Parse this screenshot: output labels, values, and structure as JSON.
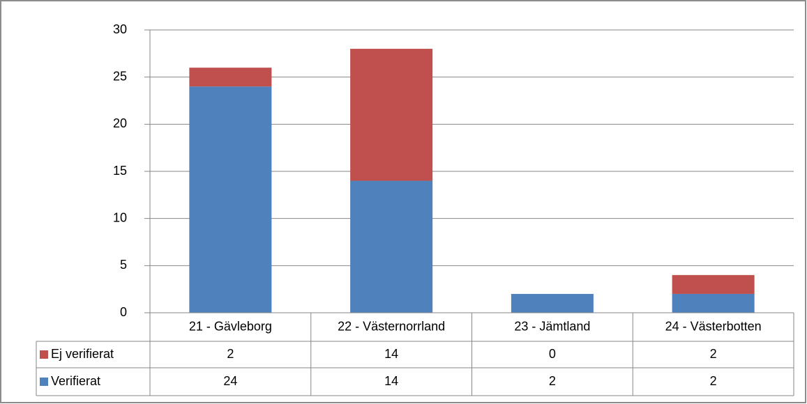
{
  "chart_data": {
    "type": "stacked_bar",
    "categories": [
      "21 - Gävleborg",
      "22 - Västernorrland",
      "23 - Jämtland",
      "24 - Västerbotten"
    ],
    "series": [
      {
        "name": "Verifierat",
        "color": "#4f81bd",
        "values": [
          24,
          14,
          2,
          2
        ]
      },
      {
        "name": "Ej verifierat",
        "color": "#c0504d",
        "values": [
          2,
          14,
          0,
          2
        ]
      }
    ],
    "ylim": [
      0,
      30
    ],
    "yticks": [
      0,
      5,
      10,
      15,
      20,
      25,
      30
    ],
    "grid": true,
    "data_table": true
  }
}
